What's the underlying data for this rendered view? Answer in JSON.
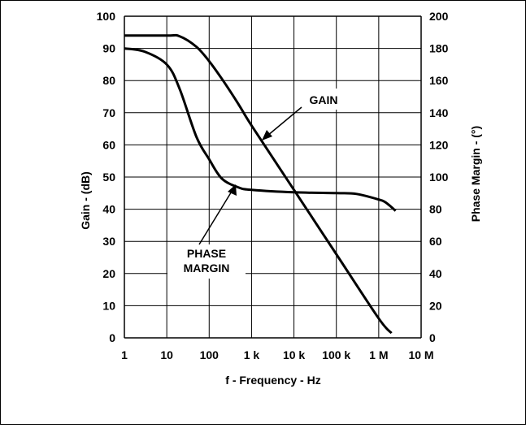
{
  "chart_data": {
    "type": "line",
    "title": "",
    "xlabel": "f - Frequency - Hz",
    "ylabel": "Gain - (dB)",
    "ylabel_right": "Phase Margin - (°)",
    "x_scale": "log",
    "xlim": [
      1,
      10000000
    ],
    "ylim": [
      0,
      100
    ],
    "ylim_right": [
      0,
      200
    ],
    "grid": true,
    "x_ticks": [
      {
        "value": 1,
        "label": "1"
      },
      {
        "value": 10,
        "label": "10"
      },
      {
        "value": 100,
        "label": "100"
      },
      {
        "value": 1000,
        "label": "1 k"
      },
      {
        "value": 10000,
        "label": "10 k"
      },
      {
        "value": 100000,
        "label": "100 k"
      },
      {
        "value": 1000000,
        "label": "1 M"
      },
      {
        "value": 10000000,
        "label": "10 M"
      }
    ],
    "y_ticks": [
      "0",
      "10",
      "20",
      "30",
      "40",
      "50",
      "60",
      "70",
      "80",
      "90",
      "100"
    ],
    "y_ticks_right": [
      "0",
      "20",
      "40",
      "60",
      "80",
      "100",
      "120",
      "140",
      "160",
      "180",
      "200"
    ],
    "series": [
      {
        "name": "GAIN",
        "axis": "left",
        "x": [
          1,
          10,
          20,
          50,
          100,
          200,
          500,
          1000,
          10000,
          100000,
          1000000,
          2000000
        ],
        "y": [
          94,
          94,
          93.8,
          90.5,
          86,
          80.5,
          72.5,
          66,
          46,
          26,
          6,
          1.5
        ]
      },
      {
        "name": "PHASE MARGIN",
        "axis": "right",
        "x": [
          1,
          3,
          10,
          20,
          50,
          100,
          200,
          500,
          1000,
          10000,
          100000,
          300000,
          1000000,
          1500000,
          2500000
        ],
        "y": [
          180,
          178,
          170,
          155,
          125,
          111,
          99,
          93.5,
          92,
          90.5,
          90,
          89.5,
          86,
          84,
          79
        ]
      }
    ],
    "annotations": [
      {
        "text": "GAIN",
        "lines": [
          "GAIN"
        ]
      },
      {
        "text": "PHASE MARGIN",
        "lines": [
          "PHASE",
          "MARGIN"
        ]
      }
    ]
  }
}
